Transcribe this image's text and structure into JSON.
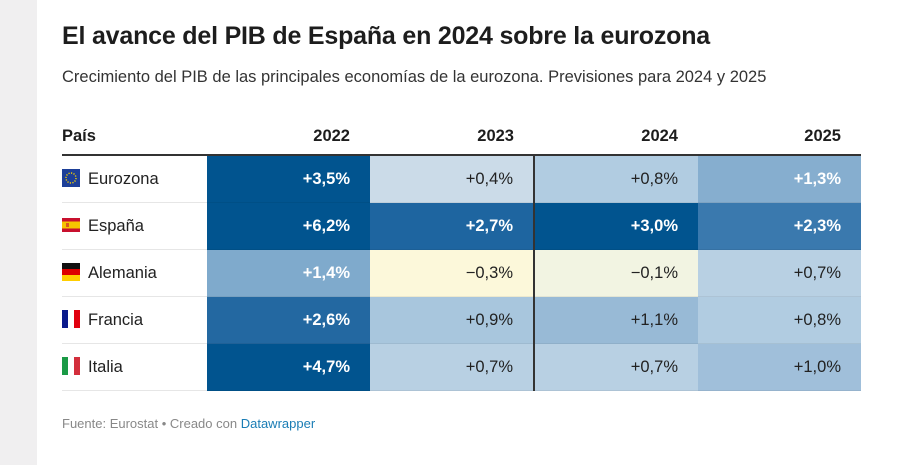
{
  "title": "El avance del PIB de España en 2024 sobre la eurozona",
  "subtitle": "Crecimiento del PIB de las principales economías de la eurozona. Previsiones para 2024 y 2025",
  "columns": [
    "País",
    "2022",
    "2023",
    "2024",
    "2025"
  ],
  "rows": [
    {
      "country": "Eurozona",
      "flag": "eu-flag-icon",
      "values": [
        "+3,5%",
        "+0,4%",
        "+0,8%",
        "+1,3%"
      ],
      "colors": [
        "#01548f",
        "#cbdbe8",
        "#b1cce1",
        "#86aecf"
      ],
      "text": [
        "#fff",
        "#222",
        "#222",
        "#fff"
      ]
    },
    {
      "country": "España",
      "flag": "spain-flag-icon",
      "values": [
        "+6,2%",
        "+2,7%",
        "+3,0%",
        "+2,3%"
      ],
      "colors": [
        "#01548f",
        "#1e65a0",
        "#01548f",
        "#3a79ae"
      ],
      "text": [
        "#fff",
        "#fff",
        "#fff",
        "#fff"
      ]
    },
    {
      "country": "Alemania",
      "flag": "germany-flag-icon",
      "values": [
        "+1,4%",
        "−0,3%",
        "−0,1%",
        "+0,7%"
      ],
      "colors": [
        "#7faacc",
        "#fcf8da",
        "#f2f4e2",
        "#b8d0e3"
      ],
      "text": [
        "#fff",
        "#222",
        "#222",
        "#222"
      ]
    },
    {
      "country": "Francia",
      "flag": "france-flag-icon",
      "values": [
        "+2,6%",
        "+0,9%",
        "+1,1%",
        "+0,8%"
      ],
      "colors": [
        "#2368a1",
        "#a8c6dd",
        "#98bad6",
        "#b1cce1"
      ],
      "text": [
        "#fff",
        "#222",
        "#222",
        "#222"
      ]
    },
    {
      "country": "Italia",
      "flag": "italy-flag-icon",
      "values": [
        "+4,7%",
        "+0,7%",
        "+0,7%",
        "+1,0%"
      ],
      "colors": [
        "#01548f",
        "#b8d0e3",
        "#b8d0e3",
        "#a0bfda"
      ],
      "text": [
        "#fff",
        "#222",
        "#222",
        "#222"
      ]
    }
  ],
  "footer": {
    "source": "Fuente: Eurostat • Creado con ",
    "link": "Datawrapper"
  }
}
